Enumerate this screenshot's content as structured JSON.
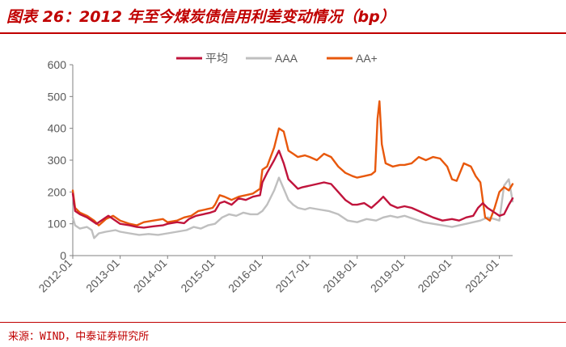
{
  "title": "图表 26：2012 年至今煤炭债信用利差变动情况（bp）",
  "source": "来源：WIND，中泰证券研究所",
  "chart_data": {
    "type": "line",
    "title": "图表 26：2012 年至今煤炭债信用利差变动情况（bp）",
    "xlabel": "",
    "ylabel": "",
    "ylim": [
      0,
      600
    ],
    "yticks": [
      "0",
      "100",
      "200",
      "300",
      "400",
      "500",
      "600"
    ],
    "xlim": [
      2012.0,
      2021.28
    ],
    "xticks": [
      "2012-01",
      "2013-01",
      "2014-01",
      "2015-01",
      "2016-01",
      "2017-01",
      "2018-01",
      "2019-01",
      "2020-01",
      "2021-01"
    ],
    "grid": false,
    "legend": "top-center",
    "series": [
      {
        "name": "平均",
        "color": "#c0143c",
        "x": [
          2012.0,
          2012.05,
          2012.15,
          2012.3,
          2012.45,
          2012.5,
          2012.6,
          2012.75,
          2012.9,
          2013.0,
          2013.2,
          2013.35,
          2013.5,
          2013.7,
          2013.9,
          2014.0,
          2014.2,
          2014.35,
          2014.45,
          2014.6,
          2014.75,
          2014.9,
          2015.0,
          2015.1,
          2015.2,
          2015.35,
          2015.5,
          2015.65,
          2015.8,
          2015.95,
          2016.0,
          2016.1,
          2016.25,
          2016.35,
          2016.45,
          2016.55,
          2016.65,
          2016.75,
          2016.85,
          2017.0,
          2017.15,
          2017.3,
          2017.45,
          2017.6,
          2017.75,
          2017.9,
          2018.0,
          2018.15,
          2018.3,
          2018.45,
          2018.55,
          2018.7,
          2018.85,
          2019.0,
          2019.15,
          2019.3,
          2019.45,
          2019.6,
          2019.8,
          2020.0,
          2020.15,
          2020.3,
          2020.45,
          2020.55,
          2020.65,
          2020.75,
          2020.85,
          2021.0,
          2021.1,
          2021.2,
          2021.28
        ],
        "values": [
          195,
          140,
          130,
          120,
          105,
          100,
          110,
          125,
          110,
          100,
          95,
          90,
          88,
          92,
          95,
          100,
          105,
          102,
          115,
          125,
          130,
          135,
          140,
          165,
          170,
          160,
          180,
          175,
          185,
          190,
          230,
          260,
          300,
          330,
          290,
          240,
          225,
          210,
          215,
          220,
          225,
          230,
          225,
          200,
          175,
          160,
          160,
          165,
          150,
          170,
          185,
          160,
          150,
          155,
          150,
          140,
          130,
          120,
          110,
          115,
          110,
          120,
          125,
          150,
          165,
          150,
          140,
          125,
          130,
          160,
          180
        ]
      },
      {
        "name": "AAA",
        "color": "#bfbfbf",
        "x": [
          2012.0,
          2012.05,
          2012.15,
          2012.3,
          2012.4,
          2012.45,
          2012.55,
          2012.7,
          2012.9,
          2013.0,
          2013.2,
          2013.4,
          2013.6,
          2013.8,
          2014.0,
          2014.2,
          2014.4,
          2014.55,
          2014.7,
          2014.85,
          2015.0,
          2015.15,
          2015.3,
          2015.45,
          2015.6,
          2015.75,
          2015.9,
          2016.0,
          2016.1,
          2016.25,
          2016.35,
          2016.45,
          2016.55,
          2016.65,
          2016.75,
          2016.9,
          2017.0,
          2017.2,
          2017.4,
          2017.6,
          2017.8,
          2018.0,
          2018.2,
          2018.4,
          2018.55,
          2018.7,
          2018.85,
          2019.0,
          2019.2,
          2019.4,
          2019.6,
          2019.8,
          2020.0,
          2020.15,
          2020.3,
          2020.45,
          2020.6,
          2020.75,
          2020.9,
          2021.0,
          2021.1,
          2021.2,
          2021.28
        ],
        "values": [
          120,
          95,
          85,
          90,
          80,
          55,
          70,
          75,
          80,
          75,
          70,
          65,
          68,
          65,
          70,
          75,
          80,
          90,
          85,
          95,
          100,
          120,
          130,
          125,
          135,
          130,
          130,
          140,
          160,
          205,
          245,
          210,
          175,
          160,
          150,
          145,
          150,
          145,
          140,
          130,
          110,
          105,
          115,
          110,
          120,
          125,
          120,
          125,
          115,
          105,
          100,
          95,
          90,
          95,
          100,
          105,
          110,
          120,
          115,
          110,
          220,
          240,
          170
        ]
      },
      {
        "name": "AA+",
        "color": "#e8580c",
        "x": [
          2012.0,
          2012.05,
          2012.15,
          2012.3,
          2012.45,
          2012.55,
          2012.7,
          2012.85,
          2013.0,
          2013.2,
          2013.35,
          2013.5,
          2013.7,
          2013.9,
          2014.0,
          2014.2,
          2014.35,
          2014.5,
          2014.65,
          2014.8,
          2014.95,
          2015.0,
          2015.1,
          2015.2,
          2015.35,
          2015.5,
          2015.65,
          2015.8,
          2015.95,
          2016.0,
          2016.1,
          2016.25,
          2016.35,
          2016.45,
          2016.55,
          2016.65,
          2016.75,
          2016.9,
          2017.0,
          2017.15,
          2017.3,
          2017.45,
          2017.6,
          2017.75,
          2017.9,
          2018.0,
          2018.15,
          2018.3,
          2018.38,
          2018.43,
          2018.47,
          2018.52,
          2018.6,
          2018.75,
          2018.9,
          2019.0,
          2019.15,
          2019.3,
          2019.45,
          2019.6,
          2019.75,
          2019.9,
          2020.0,
          2020.1,
          2020.25,
          2020.4,
          2020.5,
          2020.6,
          2020.7,
          2020.8,
          2020.9,
          2021.0,
          2021.1,
          2021.2,
          2021.28
        ],
        "values": [
          205,
          150,
          135,
          125,
          110,
          95,
          115,
          125,
          110,
          100,
          95,
          105,
          110,
          115,
          105,
          110,
          120,
          125,
          140,
          145,
          150,
          160,
          190,
          185,
          175,
          185,
          190,
          195,
          210,
          270,
          280,
          340,
          400,
          390,
          330,
          320,
          310,
          315,
          310,
          300,
          320,
          310,
          280,
          260,
          250,
          245,
          250,
          255,
          265,
          430,
          485,
          350,
          290,
          280,
          285,
          285,
          290,
          310,
          300,
          310,
          305,
          280,
          240,
          235,
          290,
          280,
          250,
          230,
          120,
          110,
          150,
          200,
          215,
          205,
          225
        ]
      }
    ]
  }
}
